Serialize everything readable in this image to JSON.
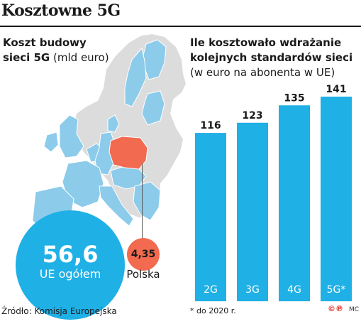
{
  "title": "Kosztowne 5G",
  "left_heading": {
    "line1": "Koszt budowy",
    "line2_bold": "sieci 5G",
    "line2_rest": " (mld euro)"
  },
  "right_heading": {
    "line1": "Ile kosztowało wdrażanie",
    "line2": "kolejnych standardów sieci",
    "line3": "(w euro na abonenta w UE)"
  },
  "eu_total": {
    "value": "56,6",
    "label": "UE ogółem"
  },
  "poland": {
    "value": "4,35",
    "label": "Polska"
  },
  "colors": {
    "bar": "#1fb0e6",
    "eu_fill": "#8ccbea",
    "non_eu_fill": "#dcdcdc",
    "poland": "#f26a4f"
  },
  "chart_data": {
    "type": "bar",
    "categories": [
      "2G",
      "3G",
      "4G",
      "5G*"
    ],
    "values": [
      116,
      123,
      135,
      141
    ],
    "value_labels": [
      "116",
      "123",
      "135",
      "141"
    ]
  },
  "source": "Źródło: Komisja Europejska",
  "footnote": "* do 2020 r.",
  "logo_text": "©℗",
  "author": "MC"
}
